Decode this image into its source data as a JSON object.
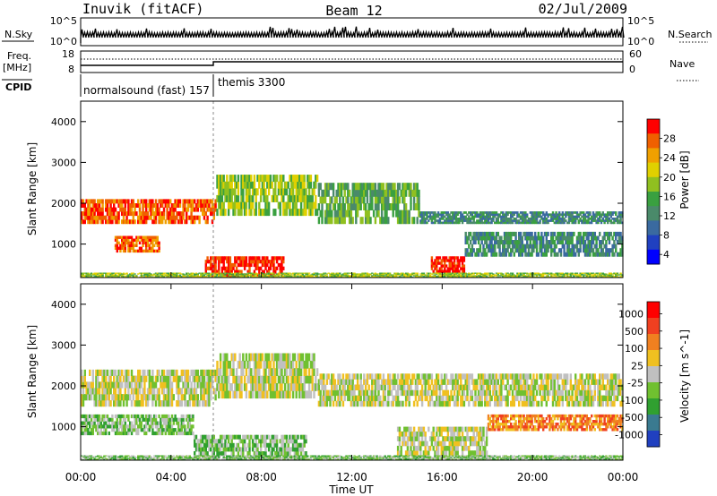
{
  "header": {
    "station": "Inuvik (fitACF)",
    "beam": "Beam 12",
    "date": "02/Jul/2009"
  },
  "top_panels": {
    "nsky_label": "N.Sky",
    "nsky_ticks": [
      "10^5",
      "10^0"
    ],
    "nsearch_label": "N.Search",
    "nsearch_ticks": [
      "10^5",
      "10^0"
    ],
    "freq_label_1": "Freq.",
    "freq_label_2": "[MHz]",
    "freq_ticks": [
      "18",
      "8"
    ],
    "nave_label": "Nave",
    "nave_ticks": [
      "60",
      "0"
    ],
    "cpid_label": "CPID",
    "cpid_modes": [
      "normalsound (fast) 157",
      "themis 3300"
    ]
  },
  "chart_data": [
    {
      "type": "heatmap",
      "title": "",
      "ylabel": "Slant Range [km]",
      "xlabel": "",
      "xlim": [
        "00:00",
        "24:00"
      ],
      "ylim": [
        180,
        4500
      ],
      "y_ticks": [
        1000,
        2000,
        3000,
        4000
      ],
      "colorbar": {
        "label": "Power [dB]",
        "ticks": [
          4,
          8,
          12,
          16,
          20,
          24,
          28
        ],
        "colors": [
          "#0000ff",
          "#2040c0",
          "#3a6aa0",
          "#4a8a6a",
          "#3aa040",
          "#90c020",
          "#e0d000",
          "#f0a000",
          "#f06000",
          "#ff0000"
        ]
      },
      "regions": [
        {
          "t0": 0.0,
          "t1": 6.0,
          "r0": 1500,
          "r1": 2100,
          "level": 8
        },
        {
          "t0": 6.0,
          "t1": 10.5,
          "r0": 1700,
          "r1": 2700,
          "level": 5
        },
        {
          "t0": 10.5,
          "t1": 15.0,
          "r0": 1500,
          "r1": 2500,
          "level": 4
        },
        {
          "t0": 15.0,
          "t1": 24.0,
          "r0": 1500,
          "r1": 1800,
          "level": 3
        },
        {
          "t0": 1.5,
          "t1": 3.5,
          "r0": 800,
          "r1": 1200,
          "level": 8
        },
        {
          "t0": 5.5,
          "t1": 9.0,
          "r0": 200,
          "r1": 700,
          "level": 9
        },
        {
          "t0": 15.5,
          "t1": 17.0,
          "r0": 300,
          "r1": 700,
          "level": 9
        },
        {
          "t0": 17.0,
          "t1": 24.0,
          "r0": 700,
          "r1": 1300,
          "level": 3
        },
        {
          "t0": 0.0,
          "t1": 24.0,
          "r0": 180,
          "r1": 300,
          "level": 5
        }
      ]
    },
    {
      "type": "heatmap",
      "title": "",
      "ylabel": "Slant Range [km]",
      "xlabel": "Time UT",
      "xlim": [
        "00:00",
        "24:00"
      ],
      "ylim": [
        180,
        4500
      ],
      "y_ticks": [
        1000,
        2000,
        3000,
        4000
      ],
      "x_ticks": [
        "00:00",
        "04:00",
        "08:00",
        "12:00",
        "16:00",
        "20:00",
        "00:00"
      ],
      "colorbar": {
        "label": "Velocity [m s^-1]",
        "ticks": [
          1000,
          500,
          100,
          25,
          -25,
          -100,
          -500,
          -1000
        ],
        "colors": [
          "#2040c0",
          "#3a7a90",
          "#30a030",
          "#70c030",
          "#c0c0c0",
          "#f0c020",
          "#f08020",
          "#f04020",
          "#ff0000"
        ]
      },
      "regions": [
        {
          "t0": 0.0,
          "t1": 6.0,
          "r0": 1500,
          "r1": 2400,
          "level": 4
        },
        {
          "t0": 6.0,
          "t1": 10.5,
          "r0": 1700,
          "r1": 2800,
          "level": 4
        },
        {
          "t0": 10.5,
          "t1": 24.0,
          "r0": 1500,
          "r1": 2300,
          "level": 4
        },
        {
          "t0": 0.0,
          "t1": 5.0,
          "r0": 800,
          "r1": 1300,
          "level": 3
        },
        {
          "t0": 5.0,
          "t1": 10.0,
          "r0": 200,
          "r1": 800,
          "level": 3
        },
        {
          "t0": 14.0,
          "t1": 18.0,
          "r0": 300,
          "r1": 1000,
          "level": 4
        },
        {
          "t0": 18.0,
          "t1": 24.0,
          "r0": 900,
          "r1": 1300,
          "level": 6
        },
        {
          "t0": 0.0,
          "t1": 24.0,
          "r0": 180,
          "r1": 300,
          "level": 3
        }
      ]
    }
  ]
}
